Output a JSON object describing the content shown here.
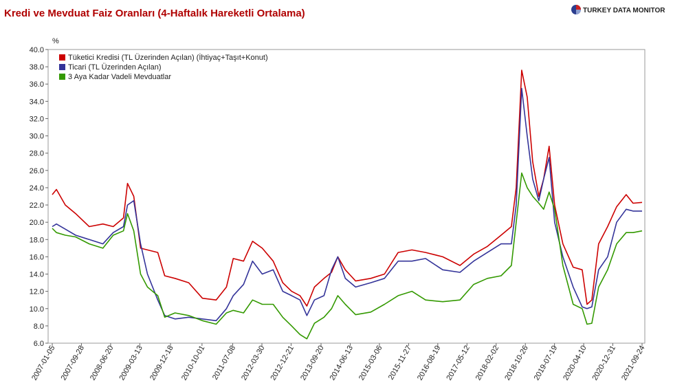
{
  "chart_data": {
    "type": "line",
    "title": "Kredi ve Mevduat Faiz Oranları (4-Haftalık Hareketli Ortalama)",
    "brand": "TURKEY DATA MONITOR",
    "y_label": "%",
    "x": [
      "2007-01-05",
      "2007-02-12",
      "2007-05-04",
      "2007-08-06",
      "2007-12-08",
      "2008-04-11",
      "2008-07-14",
      "2008-10-15",
      "2008-11-21",
      "2009-01-17",
      "2009-03-20",
      "2009-05-22",
      "2009-08-24",
      "2009-10-26",
      "2010-01-28",
      "2010-06-02",
      "2010-10-05",
      "2011-02-07",
      "2011-05-12",
      "2011-07-13",
      "2011-10-15",
      "2012-01-05",
      "2012-04-02",
      "2012-07-11",
      "2012-10-06",
      "2012-12-26",
      "2013-03-12",
      "2013-05-14",
      "2013-07-22",
      "2013-10-17",
      "2013-12-25",
      "2014-02-20",
      "2014-04-29",
      "2014-08-01",
      "2014-12-17",
      "2015-04-21",
      "2015-08-24",
      "2015-12-27",
      "2016-04-30",
      "2016-10-03",
      "2017-03-09",
      "2017-07-12",
      "2017-11-14",
      "2018-03-19",
      "2018-06-21",
      "2018-08-04",
      "2018-09-23",
      "2018-11-12",
      "2019-01-01",
      "2019-02-26",
      "2019-04-11",
      "2019-05-31",
      "2019-07-20",
      "2019-10-03",
      "2020-01-05",
      "2020-03-27",
      "2020-05-10",
      "2020-06-23",
      "2020-08-24",
      "2020-11-14",
      "2021-02-04",
      "2021-05-02",
      "2021-07-04",
      "2021-09-24"
    ],
    "series": [
      {
        "name": "Tüketici Kredisi (TL Üzerinden Açılan) (İhtiyaç+Taşıt+Konut)",
        "color": "#cc0000",
        "values": [
          23.2,
          23.8,
          22.0,
          21.0,
          19.5,
          19.8,
          19.5,
          20.5,
          24.5,
          23.0,
          17.0,
          16.8,
          16.5,
          13.8,
          13.5,
          13.0,
          11.2,
          11.0,
          12.5,
          15.8,
          15.5,
          17.8,
          17.0,
          15.5,
          13.0,
          12.0,
          11.5,
          10.3,
          12.5,
          13.5,
          14.2,
          16.0,
          14.5,
          13.2,
          13.5,
          14.0,
          16.5,
          16.8,
          16.5,
          16.0,
          15.0,
          16.3,
          17.2,
          18.5,
          19.5,
          24.0,
          37.6,
          34.5,
          27.0,
          23.0,
          25.0,
          28.8,
          22.0,
          17.5,
          14.8,
          14.5,
          10.5,
          11.0,
          17.5,
          19.5,
          21.8,
          23.2,
          22.2,
          22.3
        ]
      },
      {
        "name": "Ticari (TL Üzerinden Açılan)",
        "color": "#333399",
        "values": [
          19.5,
          19.8,
          19.2,
          18.5,
          18.0,
          17.5,
          18.8,
          19.5,
          22.0,
          22.5,
          17.5,
          14.0,
          11.0,
          9.2,
          8.8,
          9.0,
          8.8,
          8.6,
          10.0,
          11.5,
          12.8,
          15.5,
          14.0,
          14.5,
          12.0,
          11.5,
          11.0,
          9.2,
          11.0,
          11.5,
          14.5,
          16.0,
          13.5,
          12.5,
          13.0,
          13.5,
          15.5,
          15.5,
          15.8,
          14.5,
          14.2,
          15.5,
          16.5,
          17.5,
          17.5,
          22.0,
          35.5,
          30.0,
          25.0,
          22.5,
          25.0,
          27.5,
          20.0,
          16.0,
          12.5,
          10.2,
          10.0,
          10.2,
          14.5,
          16.0,
          20.0,
          21.5,
          21.3,
          21.3
        ]
      },
      {
        "name": "3 Aya Kadar Vadeli Mevduatlar",
        "color": "#339900",
        "values": [
          19.3,
          18.8,
          18.5,
          18.3,
          17.5,
          17.0,
          18.5,
          19.0,
          21.0,
          19.0,
          14.0,
          12.5,
          11.5,
          9.0,
          9.5,
          9.2,
          8.6,
          8.2,
          9.5,
          9.8,
          9.5,
          11.0,
          10.5,
          10.5,
          9.0,
          8.0,
          7.0,
          6.5,
          8.3,
          9.0,
          10.0,
          11.5,
          10.5,
          9.3,
          9.6,
          10.5,
          11.5,
          12.0,
          11.0,
          10.8,
          11.0,
          12.8,
          13.5,
          13.8,
          15.0,
          20.0,
          25.7,
          24.0,
          23.0,
          22.2,
          21.5,
          23.5,
          21.5,
          15.0,
          10.5,
          10.0,
          8.2,
          8.3,
          12.5,
          14.5,
          17.5,
          18.8,
          18.8,
          19.0
        ]
      }
    ],
    "xlim": [
      "2007-01-05",
      "2021-09-24"
    ],
    "xticks": [
      "2007-01-05",
      "2007-09-28",
      "2008-06-20",
      "2009-03-13",
      "2009-12-18",
      "2010-10-01",
      "2011-07-08",
      "2012-03-30",
      "2012-12-21",
      "2013-09-20",
      "2014-06-13",
      "2015-03-06",
      "2015-11-27",
      "2016-08-19",
      "2017-05-12",
      "2018-02-02",
      "2018-10-26",
      "2019-07-19",
      "2020-04-10",
      "2020-12-31",
      "2021-09-24"
    ],
    "ylim": [
      6,
      40
    ],
    "yticks": [
      {
        "value": 6,
        "label": "6.0"
      },
      {
        "value": 8,
        "label": "8.0"
      },
      {
        "value": 10,
        "label": "10.0"
      },
      {
        "value": 12,
        "label": "12.0"
      },
      {
        "value": 14,
        "label": "14.0"
      },
      {
        "value": 16,
        "label": "16.0"
      },
      {
        "value": 18,
        "label": "18.0"
      },
      {
        "value": 20,
        "label": "20.0"
      },
      {
        "value": 22,
        "label": "22.0"
      },
      {
        "value": 24,
        "label": "24.0"
      },
      {
        "value": 26,
        "label": "26.0"
      },
      {
        "value": 28,
        "label": "28.0"
      },
      {
        "value": 30,
        "label": "30.0"
      },
      {
        "value": 32,
        "label": "32.0"
      },
      {
        "value": 34,
        "label": "34.0"
      },
      {
        "value": 36,
        "label": "36.0"
      },
      {
        "value": 38,
        "label": "38.0"
      },
      {
        "value": 40,
        "label": "40.0"
      }
    ],
    "grid": false,
    "legend": "top-left"
  }
}
